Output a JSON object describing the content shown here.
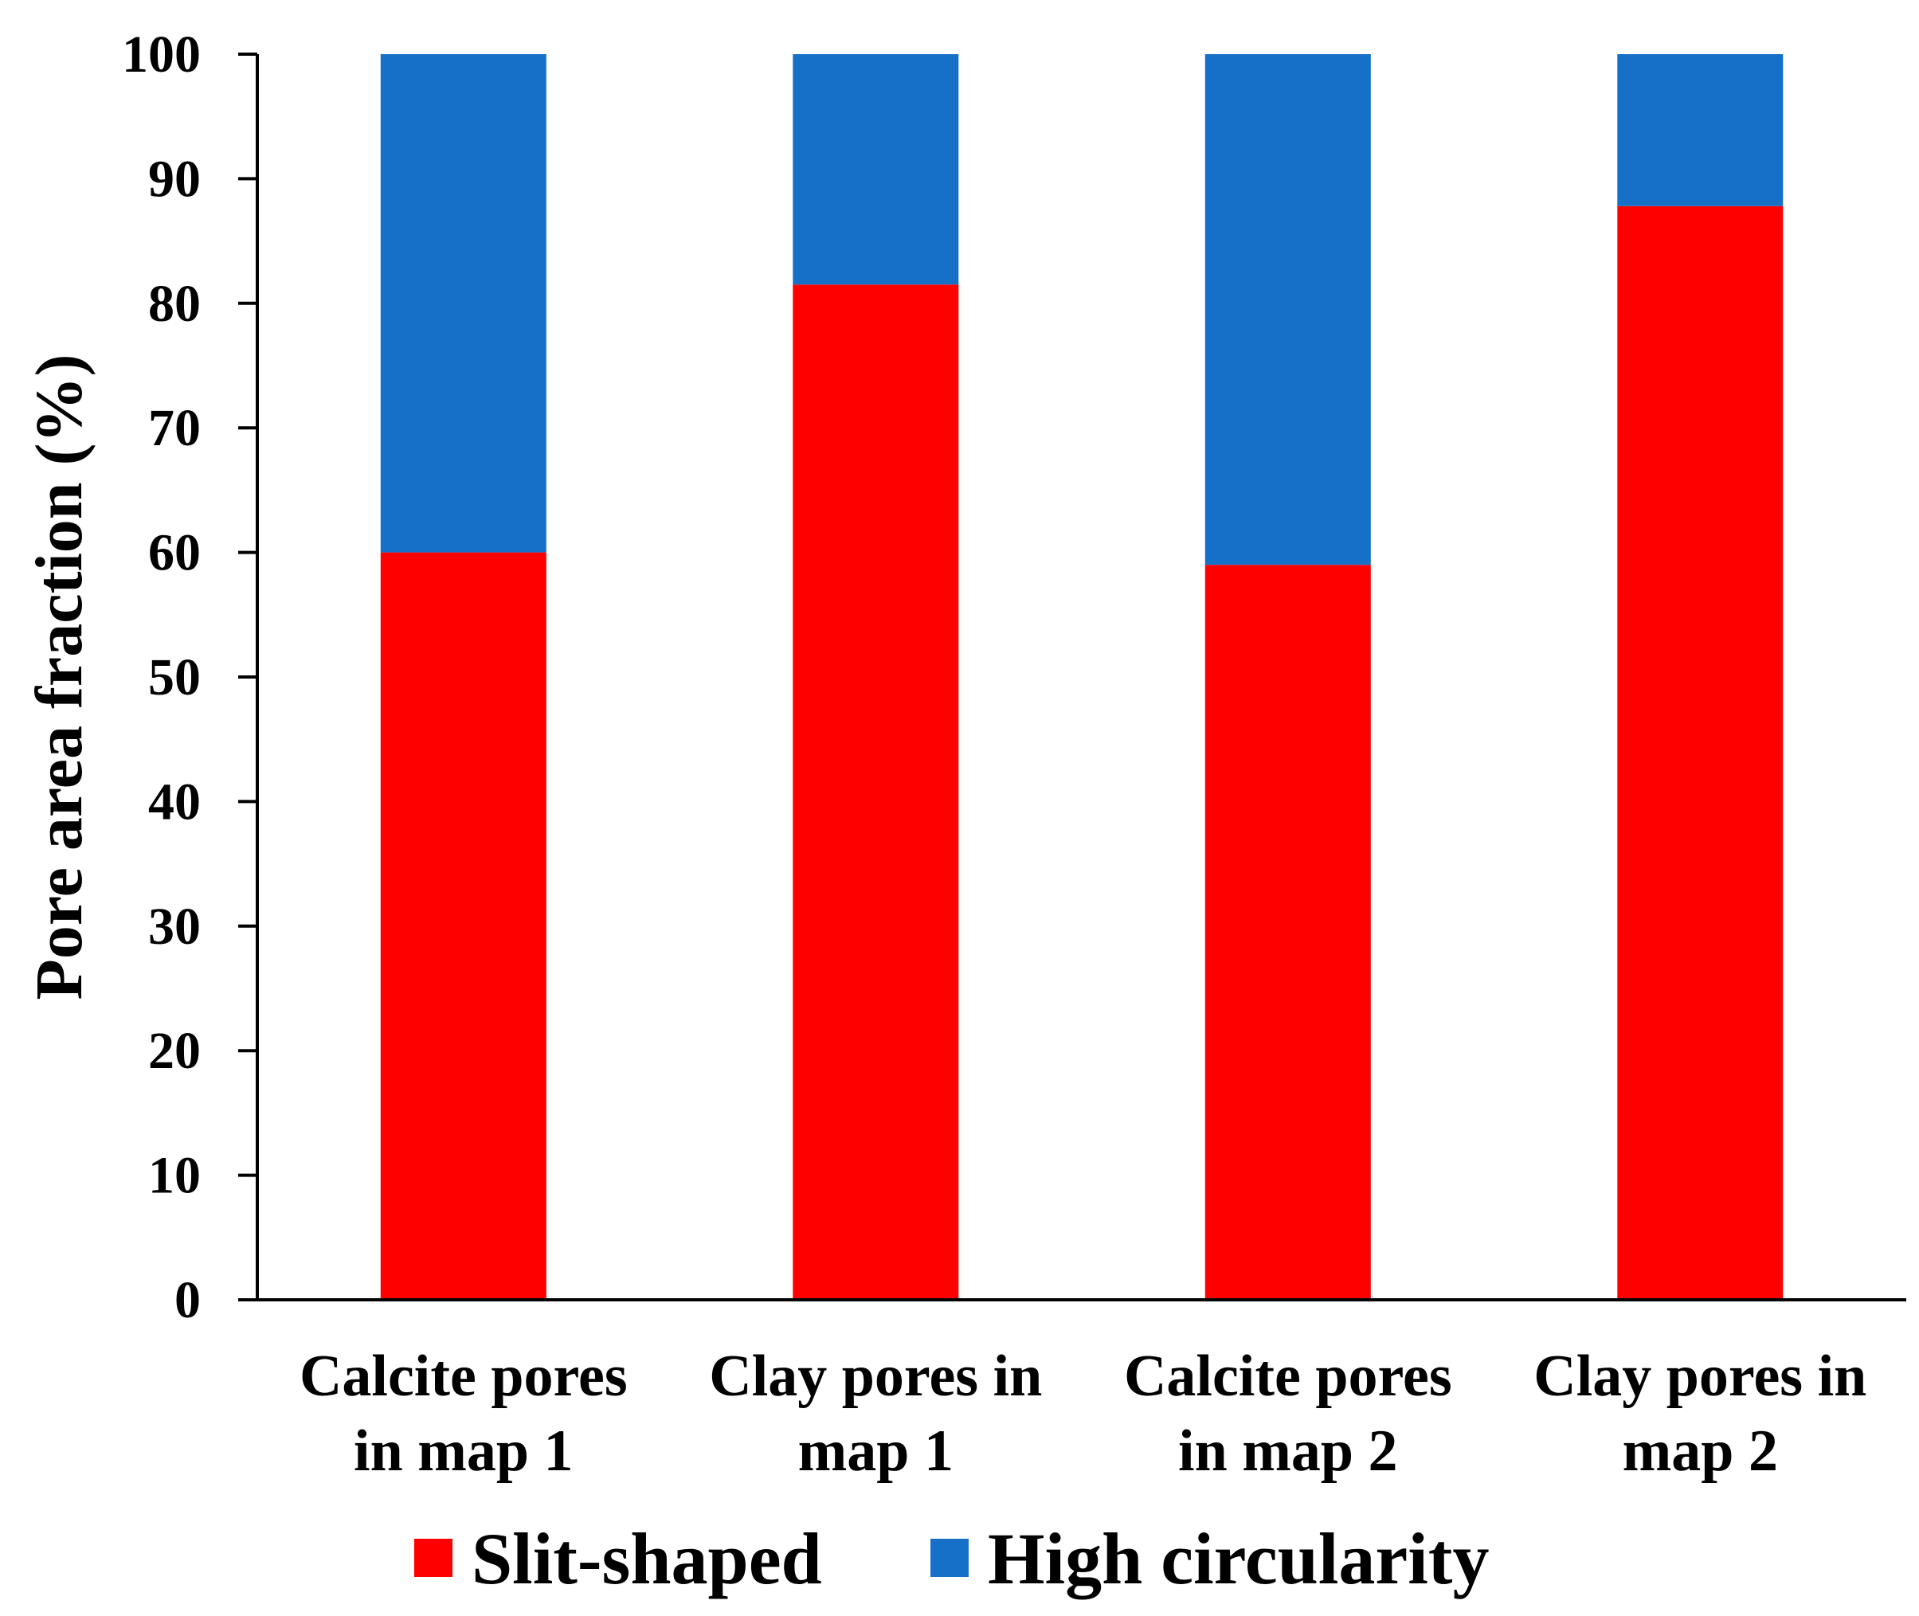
{
  "chart_data": {
    "type": "bar",
    "stacked": true,
    "title": "",
    "xlabel": "",
    "ylabel": "Pore area fraction (%)",
    "ylim": [
      0,
      100
    ],
    "yticks": [
      0,
      10,
      20,
      30,
      40,
      50,
      60,
      70,
      80,
      90,
      100
    ],
    "grid": false,
    "legend_position": "bottom",
    "categories": [
      [
        "Calcite pores",
        "in map 1"
      ],
      [
        "Clay pores in",
        "map 1"
      ],
      [
        "Calcite pores",
        "in map 2"
      ],
      [
        "Clay pores in",
        "map 2"
      ]
    ],
    "series": [
      {
        "name": "Slit-shaped",
        "color": "#ff0000",
        "values": [
          60,
          81.5,
          59,
          87.8
        ]
      },
      {
        "name": "High circularity",
        "color": "#1670c8",
        "values": [
          40,
          18.5,
          41,
          12.2
        ]
      }
    ]
  }
}
